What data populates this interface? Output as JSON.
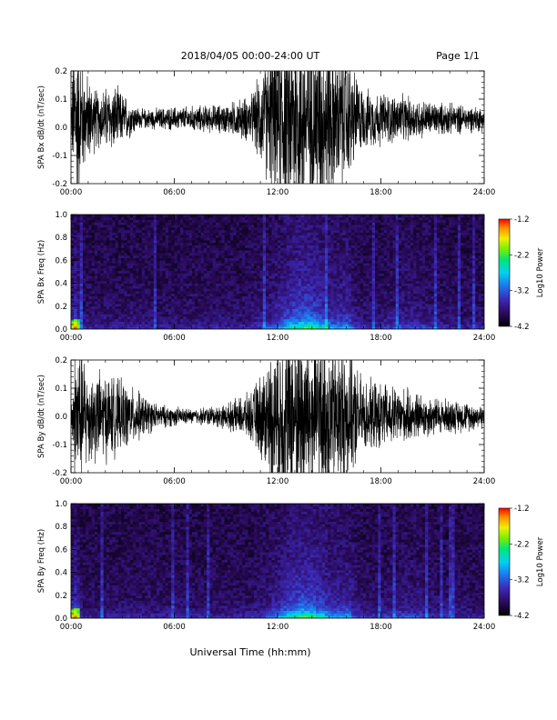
{
  "header": {
    "title": "2018/04/05  00:00-24:00 UT",
    "page": "Page 1/1"
  },
  "footer": {
    "xlabel": "Universal Time (hh:mm)"
  },
  "chart_data": [
    {
      "type": "line",
      "ylabel": "SPA Bx dB/dt (nT/sec)",
      "xlim": [
        0,
        24
      ],
      "ylim": [
        -0.2,
        0.2
      ],
      "x_ticks": [
        "00:00",
        "06:00",
        "12:00",
        "18:00",
        "24:00"
      ],
      "y_ticks": [
        "-0.2",
        "-0.1",
        "0.0",
        "0.1",
        "0.2"
      ],
      "baseline": 0.03,
      "amplitude_envelope": [
        {
          "t": 0.0,
          "a": 0.05
        },
        {
          "t": 0.2,
          "a": 0.4
        },
        {
          "t": 0.8,
          "a": 0.2
        },
        {
          "t": 1.5,
          "a": 0.12
        },
        {
          "t": 2.5,
          "a": 0.14
        },
        {
          "t": 4.0,
          "a": 0.04
        },
        {
          "t": 6.5,
          "a": 0.05
        },
        {
          "t": 9.0,
          "a": 0.06
        },
        {
          "t": 10.5,
          "a": 0.1
        },
        {
          "t": 11.5,
          "a": 0.28
        },
        {
          "t": 12.5,
          "a": 0.4
        },
        {
          "t": 14.5,
          "a": 0.38
        },
        {
          "t": 15.8,
          "a": 0.3
        },
        {
          "t": 17.0,
          "a": 0.12
        },
        {
          "t": 19.0,
          "a": 0.1
        },
        {
          "t": 21.0,
          "a": 0.07
        },
        {
          "t": 24.0,
          "a": 0.05
        }
      ]
    },
    {
      "type": "heatmap",
      "ylabel": "SPA Bx Freq (Hz)",
      "xlim": [
        0,
        24
      ],
      "ylim": [
        0.0,
        1.0
      ],
      "x_ticks": [
        "00:00",
        "06:00",
        "12:00",
        "18:00",
        "24:00"
      ],
      "y_ticks": [
        "0.0",
        "0.2",
        "0.4",
        "0.6",
        "0.8",
        "1.0"
      ],
      "colorbar": {
        "label": "Log10 Power",
        "range": [
          -4.2,
          -1.2
        ],
        "ticks": [
          "-1.2",
          "-2.2",
          "-3.2",
          "-4.2"
        ]
      }
    },
    {
      "type": "line",
      "ylabel": "SPA By dB/dt (nT/sec)",
      "xlim": [
        0,
        24
      ],
      "ylim": [
        -0.2,
        0.2
      ],
      "x_ticks": [
        "00:00",
        "06:00",
        "12:00",
        "18:00",
        "24:00"
      ],
      "y_ticks": [
        "-0.2",
        "-0.1",
        "0.0",
        "0.1",
        "0.2"
      ],
      "baseline": 0.0,
      "amplitude_envelope": [
        {
          "t": 0.0,
          "a": 0.05
        },
        {
          "t": 0.3,
          "a": 0.35
        },
        {
          "t": 1.0,
          "a": 0.2
        },
        {
          "t": 2.0,
          "a": 0.18
        },
        {
          "t": 3.5,
          "a": 0.12
        },
        {
          "t": 5.0,
          "a": 0.05
        },
        {
          "t": 7.0,
          "a": 0.03
        },
        {
          "t": 9.0,
          "a": 0.05
        },
        {
          "t": 10.5,
          "a": 0.1
        },
        {
          "t": 11.5,
          "a": 0.25
        },
        {
          "t": 12.5,
          "a": 0.4
        },
        {
          "t": 14.5,
          "a": 0.35
        },
        {
          "t": 16.0,
          "a": 0.28
        },
        {
          "t": 17.0,
          "a": 0.15
        },
        {
          "t": 19.0,
          "a": 0.12
        },
        {
          "t": 21.0,
          "a": 0.08
        },
        {
          "t": 24.0,
          "a": 0.05
        }
      ]
    },
    {
      "type": "heatmap",
      "ylabel": "SPA By Freq (Hz)",
      "xlim": [
        0,
        24
      ],
      "ylim": [
        0.0,
        1.0
      ],
      "x_ticks": [
        "00:00",
        "06:00",
        "12:00",
        "18:00",
        "24:00"
      ],
      "y_ticks": [
        "0.0",
        "0.2",
        "0.4",
        "0.6",
        "0.8",
        "1.0"
      ],
      "colorbar": {
        "label": "Log10 Power",
        "range": [
          -4.2,
          -1.2
        ],
        "ticks": [
          "-1.2",
          "-2.2",
          "-3.2",
          "-4.2"
        ]
      }
    }
  ]
}
